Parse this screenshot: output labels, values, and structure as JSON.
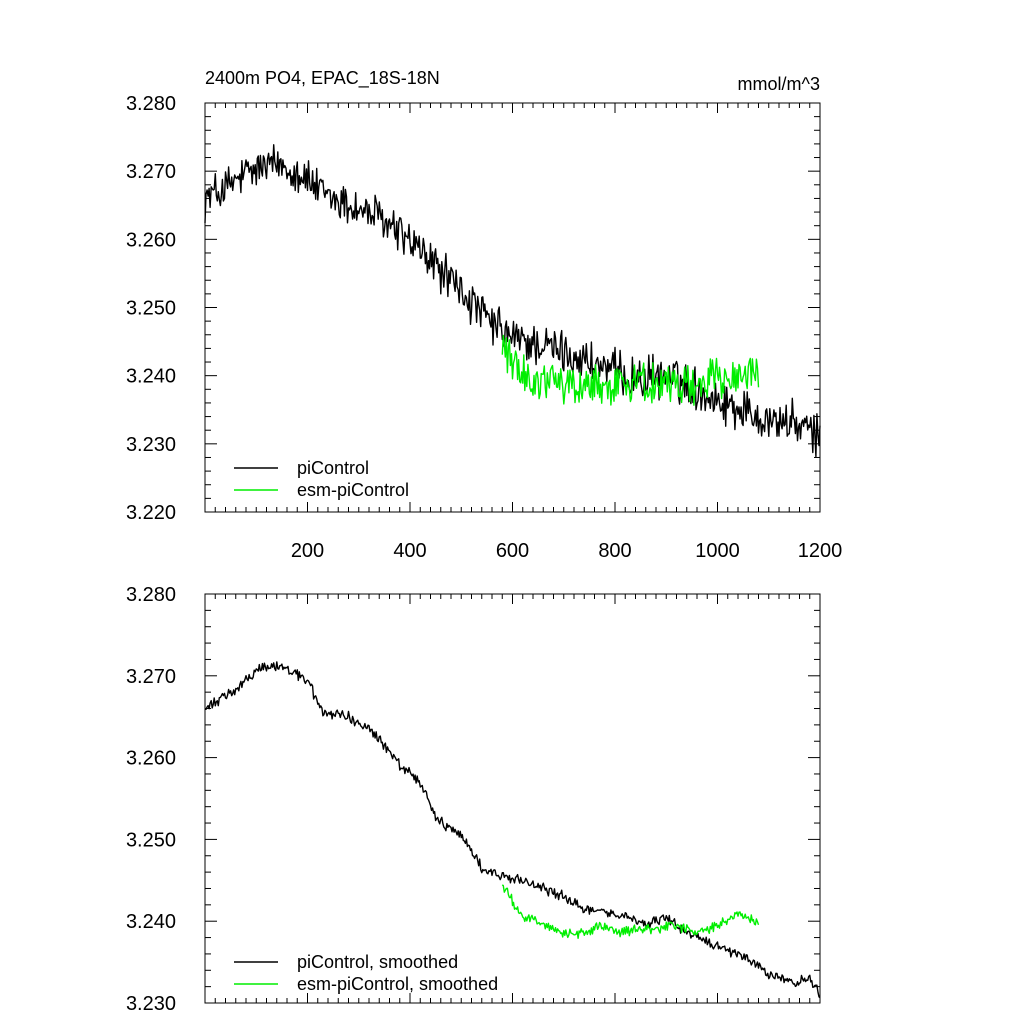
{
  "chart_data": [
    {
      "type": "line",
      "title": "2400m PO4, EPAC_18S-18N",
      "units_label": "mmol/m^3",
      "xlim": [
        0,
        1200
      ],
      "ylim": [
        3.22,
        3.28
      ],
      "xticks": [
        200,
        400,
        600,
        800,
        1000,
        1200
      ],
      "xtick_labels": [
        "200",
        "400",
        "600",
        "800",
        "1000",
        "1200"
      ],
      "yticks": [
        3.22,
        3.23,
        3.24,
        3.25,
        3.26,
        3.27,
        3.28
      ],
      "ytick_labels": [
        "3.220",
        "3.230",
        "3.240",
        "3.250",
        "3.260",
        "3.270",
        "3.280"
      ],
      "legend_position": "bottom-left",
      "series": [
        {
          "name": "piControl",
          "color": "#000000",
          "x_range": [
            0,
            1200
          ],
          "noise": 0.0025,
          "x": [
            0,
            40,
            80,
            110,
            150,
            190,
            230,
            280,
            330,
            380,
            430,
            480,
            520,
            560,
            600,
            650,
            700,
            750,
            800,
            850,
            900,
            950,
            1000,
            1050,
            1100,
            1150,
            1200
          ],
          "y": [
            3.266,
            3.2675,
            3.2695,
            3.2705,
            3.271,
            3.2695,
            3.2665,
            3.265,
            3.2635,
            3.261,
            3.2575,
            3.254,
            3.2505,
            3.2475,
            3.2455,
            3.2445,
            3.2435,
            3.242,
            3.2405,
            3.2395,
            3.24,
            3.2385,
            3.2365,
            3.235,
            3.2335,
            3.233,
            3.231
          ]
        },
        {
          "name": "esm-piControl",
          "color": "#00ee00",
          "x_range": [
            580,
            1080
          ],
          "noise": 0.0025,
          "x": [
            580,
            600,
            620,
            650,
            700,
            750,
            800,
            850,
            900,
            950,
            1000,
            1050,
            1080
          ],
          "y": [
            3.2445,
            3.2425,
            3.2405,
            3.2395,
            3.2385,
            3.2385,
            3.239,
            3.239,
            3.2385,
            3.239,
            3.2395,
            3.2405,
            3.2395
          ]
        }
      ]
    },
    {
      "type": "line",
      "title": "",
      "units_label": "",
      "xlim": [
        0,
        1200
      ],
      "ylim": [
        3.23,
        3.28
      ],
      "xticks": [
        200,
        400,
        600,
        800,
        1000,
        1200
      ],
      "xtick_labels": [],
      "yticks": [
        3.23,
        3.24,
        3.25,
        3.26,
        3.27,
        3.28
      ],
      "ytick_labels": [
        "3.230",
        "3.240",
        "3.250",
        "3.260",
        "3.270",
        "3.280"
      ],
      "legend_position": "bottom-left",
      "series": [
        {
          "name": "piControl, smoothed",
          "color": "#000000",
          "x_range": [
            0,
            1200
          ],
          "noise": 0.0005,
          "x": [
            0,
            40,
            80,
            110,
            140,
            170,
            200,
            230,
            280,
            330,
            380,
            420,
            450,
            500,
            540,
            580,
            620,
            660,
            700,
            740,
            780,
            820,
            860,
            900,
            940,
            980,
            1020,
            1060,
            1100,
            1140,
            1180,
            1200
          ],
          "y": [
            3.266,
            3.2675,
            3.2695,
            3.271,
            3.2712,
            3.2705,
            3.2695,
            3.2655,
            3.265,
            3.263,
            3.259,
            3.257,
            3.2525,
            3.2505,
            3.2465,
            3.2455,
            3.245,
            3.244,
            3.243,
            3.2415,
            3.241,
            3.2405,
            3.2395,
            3.2405,
            3.2385,
            3.2375,
            3.2365,
            3.2355,
            3.2335,
            3.2325,
            3.233,
            3.231
          ]
        },
        {
          "name": "esm-piControl, smoothed",
          "color": "#00ee00",
          "x_range": [
            580,
            1080
          ],
          "noise": 0.0005,
          "x": [
            580,
            600,
            620,
            640,
            660,
            700,
            740,
            780,
            800,
            840,
            880,
            920,
            960,
            1000,
            1040,
            1060,
            1080
          ],
          "y": [
            3.2445,
            3.2425,
            3.2405,
            3.2405,
            3.2395,
            3.2385,
            3.2385,
            3.2395,
            3.2385,
            3.239,
            3.239,
            3.2395,
            3.2385,
            3.2395,
            3.241,
            3.2405,
            3.2395
          ]
        }
      ]
    }
  ]
}
